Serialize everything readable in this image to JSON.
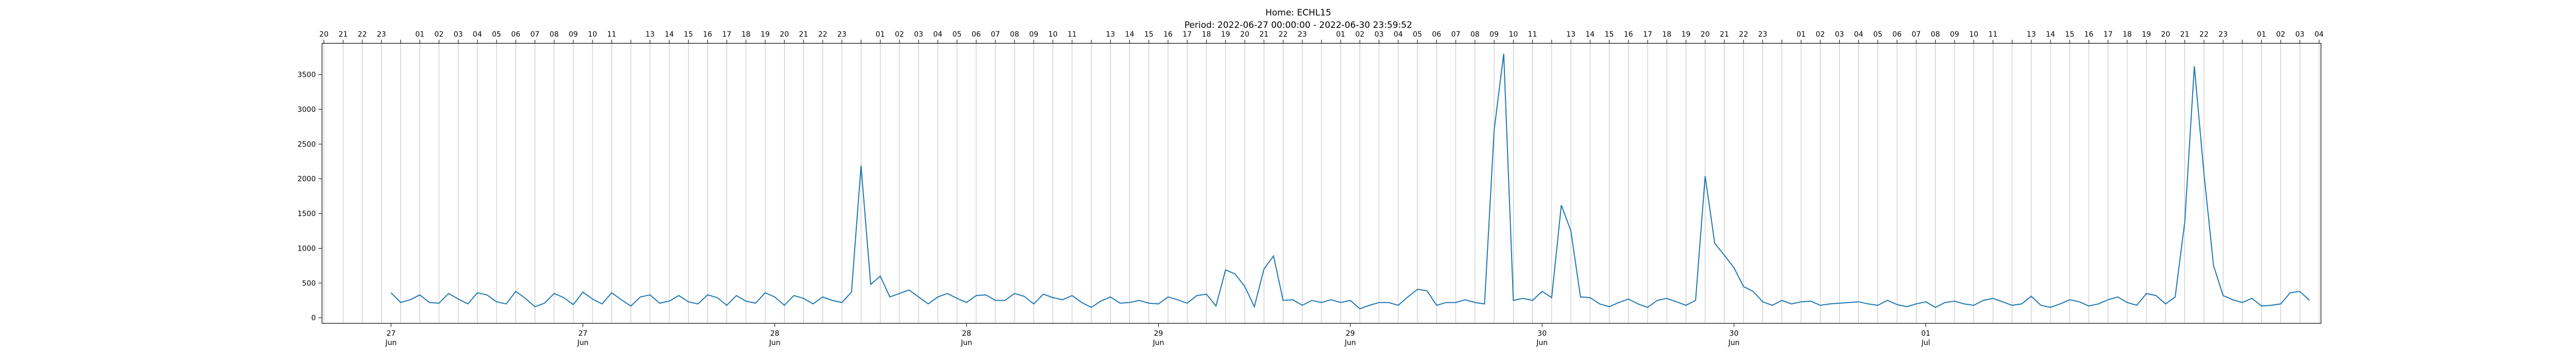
{
  "chart_data": {
    "type": "line",
    "title": "Home: ECHL15",
    "subtitle": "Period: 2022-06-27 00:00:00 - 2022-06-30 23:59:52",
    "xlabel": "",
    "ylabel": "",
    "ylim": [
      -80,
      3950
    ],
    "yticks": [
      0,
      500,
      1000,
      1500,
      2000,
      2500,
      3000,
      3500
    ],
    "xlim": [
      -3.6,
      100.6
    ],
    "grid": "vertical lines at each top hour tick",
    "series_color": "#1f77b4",
    "bottom_ticks": [
      {
        "x": 0,
        "day": "27",
        "month": "Jun"
      },
      {
        "x": 10,
        "day": "27",
        "month": "Jun"
      },
      {
        "x": 20,
        "day": "28",
        "month": "Jun"
      },
      {
        "x": 30,
        "day": "28",
        "month": "Jun"
      },
      {
        "x": 40,
        "day": "29",
        "month": "Jun"
      },
      {
        "x": 50,
        "day": "29",
        "month": "Jun"
      },
      {
        "x": 60,
        "day": "30",
        "month": "Jun"
      },
      {
        "x": 70,
        "day": "30",
        "month": "Jun"
      },
      {
        "x": 80,
        "day": "01",
        "month": "Jul"
      }
    ],
    "top_ticks": [
      {
        "x": -3.5,
        "label": "20"
      },
      {
        "x": -2.5,
        "label": "21"
      },
      {
        "x": -1.5,
        "label": "22"
      },
      {
        "x": -0.5,
        "label": "23"
      },
      {
        "x": 0.5,
        "label": ""
      },
      {
        "x": 1.5,
        "label": "01"
      },
      {
        "x": 2.5,
        "label": "02"
      },
      {
        "x": 3.5,
        "label": "03"
      },
      {
        "x": 4.5,
        "label": "04"
      },
      {
        "x": 5.5,
        "label": "05"
      },
      {
        "x": 6.5,
        "label": "06"
      },
      {
        "x": 7.5,
        "label": "07"
      },
      {
        "x": 8.5,
        "label": "08"
      },
      {
        "x": 9.5,
        "label": "09"
      },
      {
        "x": 10.5,
        "label": "10"
      },
      {
        "x": 11.5,
        "label": "11"
      },
      {
        "x": 12.5,
        "label": ""
      },
      {
        "x": 13.5,
        "label": "13"
      },
      {
        "x": 14.5,
        "label": "14"
      },
      {
        "x": 15.5,
        "label": "15"
      },
      {
        "x": 16.5,
        "label": "16"
      },
      {
        "x": 17.5,
        "label": "17"
      },
      {
        "x": 18.5,
        "label": "18"
      },
      {
        "x": 19.5,
        "label": "19"
      },
      {
        "x": 20.5,
        "label": "20"
      },
      {
        "x": 21.5,
        "label": "21"
      },
      {
        "x": 22.5,
        "label": "22"
      },
      {
        "x": 23.5,
        "label": "23"
      },
      {
        "x": 24.5,
        "label": ""
      },
      {
        "x": 25.5,
        "label": "01"
      },
      {
        "x": 26.5,
        "label": "02"
      },
      {
        "x": 27.5,
        "label": "03"
      },
      {
        "x": 28.5,
        "label": "04"
      },
      {
        "x": 29.5,
        "label": "05"
      },
      {
        "x": 30.5,
        "label": "06"
      },
      {
        "x": 31.5,
        "label": "07"
      },
      {
        "x": 32.5,
        "label": "08"
      },
      {
        "x": 33.5,
        "label": "09"
      },
      {
        "x": 34.5,
        "label": "10"
      },
      {
        "x": 35.5,
        "label": "11"
      },
      {
        "x": 36.5,
        "label": ""
      },
      {
        "x": 37.5,
        "label": "13"
      },
      {
        "x": 38.5,
        "label": "14"
      },
      {
        "x": 39.5,
        "label": "15"
      },
      {
        "x": 40.5,
        "label": "16"
      },
      {
        "x": 41.5,
        "label": "17"
      },
      {
        "x": 42.5,
        "label": "18"
      },
      {
        "x": 43.5,
        "label": "19"
      },
      {
        "x": 44.5,
        "label": "20"
      },
      {
        "x": 45.5,
        "label": "21"
      },
      {
        "x": 46.5,
        "label": "22"
      },
      {
        "x": 47.5,
        "label": "23"
      },
      {
        "x": 48.5,
        "label": ""
      },
      {
        "x": 49.5,
        "label": "01"
      },
      {
        "x": 50.5,
        "label": "02"
      },
      {
        "x": 51.5,
        "label": "03"
      },
      {
        "x": 52.5,
        "label": "04"
      },
      {
        "x": 53.5,
        "label": "05"
      },
      {
        "x": 54.5,
        "label": "06"
      },
      {
        "x": 55.5,
        "label": "07"
      },
      {
        "x": 56.5,
        "label": "08"
      },
      {
        "x": 57.5,
        "label": "09"
      },
      {
        "x": 58.5,
        "label": "10"
      },
      {
        "x": 59.5,
        "label": "11"
      },
      {
        "x": 60.5,
        "label": ""
      },
      {
        "x": 61.5,
        "label": "13"
      },
      {
        "x": 62.5,
        "label": "14"
      },
      {
        "x": 63.5,
        "label": "15"
      },
      {
        "x": 64.5,
        "label": "16"
      },
      {
        "x": 65.5,
        "label": "17"
      },
      {
        "x": 66.5,
        "label": "18"
      },
      {
        "x": 67.5,
        "label": "19"
      },
      {
        "x": 68.5,
        "label": "20"
      },
      {
        "x": 69.5,
        "label": "21"
      },
      {
        "x": 70.5,
        "label": "22"
      },
      {
        "x": 71.5,
        "label": "23"
      },
      {
        "x": 72.5,
        "label": ""
      },
      {
        "x": 73.5,
        "label": "01"
      },
      {
        "x": 74.5,
        "label": "02"
      },
      {
        "x": 75.5,
        "label": "03"
      },
      {
        "x": 76.5,
        "label": "04"
      },
      {
        "x": 77.5,
        "label": "05"
      },
      {
        "x": 78.5,
        "label": "06"
      },
      {
        "x": 79.5,
        "label": "07"
      },
      {
        "x": 80.5,
        "label": "08"
      },
      {
        "x": 81.5,
        "label": "09"
      },
      {
        "x": 82.5,
        "label": "10"
      },
      {
        "x": 83.5,
        "label": "11"
      },
      {
        "x": 84.5,
        "label": ""
      },
      {
        "x": 85.5,
        "label": "13"
      },
      {
        "x": 86.5,
        "label": "14"
      },
      {
        "x": 87.5,
        "label": "15"
      },
      {
        "x": 88.5,
        "label": "16"
      },
      {
        "x": 89.5,
        "label": "17"
      },
      {
        "x": 90.5,
        "label": "18"
      },
      {
        "x": 91.5,
        "label": "19"
      },
      {
        "x": 92.5,
        "label": "20"
      },
      {
        "x": 93.5,
        "label": "21"
      },
      {
        "x": 94.5,
        "label": "22"
      },
      {
        "x": 95.5,
        "label": "23"
      },
      {
        "x": 96.5,
        "label": ""
      },
      {
        "x": 97.5,
        "label": "01"
      },
      {
        "x": 98.5,
        "label": "02"
      },
      {
        "x": 99.5,
        "label": "03"
      },
      {
        "x": 100.5,
        "label": "04"
      }
    ],
    "series": [
      {
        "points": [
          [
            0.0,
            360
          ],
          [
            0.5,
            220
          ],
          [
            1.0,
            260
          ],
          [
            1.5,
            330
          ],
          [
            2.0,
            220
          ],
          [
            2.5,
            210
          ],
          [
            3.0,
            350
          ],
          [
            3.5,
            270
          ],
          [
            4.0,
            200
          ],
          [
            4.5,
            360
          ],
          [
            5.0,
            330
          ],
          [
            5.5,
            230
          ],
          [
            6.0,
            200
          ],
          [
            6.5,
            380
          ],
          [
            7.0,
            280
          ],
          [
            7.5,
            160
          ],
          [
            8.0,
            210
          ],
          [
            8.5,
            350
          ],
          [
            9.0,
            290
          ],
          [
            9.5,
            190
          ],
          [
            10.0,
            370
          ],
          [
            10.5,
            270
          ],
          [
            11.0,
            200
          ],
          [
            11.5,
            360
          ],
          [
            12.0,
            260
          ],
          [
            12.5,
            170
          ],
          [
            13.0,
            300
          ],
          [
            13.5,
            330
          ],
          [
            14.0,
            210
          ],
          [
            14.5,
            240
          ],
          [
            15.0,
            320
          ],
          [
            15.5,
            230
          ],
          [
            16.0,
            200
          ],
          [
            16.5,
            330
          ],
          [
            17.0,
            290
          ],
          [
            17.5,
            180
          ],
          [
            18.0,
            320
          ],
          [
            18.5,
            240
          ],
          [
            19.0,
            210
          ],
          [
            19.5,
            360
          ],
          [
            20.0,
            300
          ],
          [
            20.5,
            180
          ],
          [
            21.0,
            320
          ],
          [
            21.5,
            280
          ],
          [
            22.0,
            200
          ],
          [
            22.5,
            300
          ],
          [
            23.0,
            250
          ],
          [
            23.5,
            220
          ],
          [
            24.0,
            370
          ],
          [
            24.5,
            2190
          ],
          [
            25.0,
            480
          ],
          [
            25.5,
            600
          ],
          [
            26.0,
            300
          ],
          [
            26.5,
            350
          ],
          [
            27.0,
            400
          ],
          [
            27.5,
            300
          ],
          [
            28.0,
            200
          ],
          [
            28.5,
            300
          ],
          [
            29.0,
            350
          ],
          [
            29.5,
            280
          ],
          [
            30.0,
            220
          ],
          [
            30.5,
            320
          ],
          [
            31.0,
            330
          ],
          [
            31.5,
            250
          ],
          [
            32.0,
            250
          ],
          [
            32.5,
            350
          ],
          [
            33.0,
            310
          ],
          [
            33.5,
            200
          ],
          [
            34.0,
            340
          ],
          [
            34.5,
            290
          ],
          [
            35.0,
            260
          ],
          [
            35.5,
            320
          ],
          [
            36.0,
            220
          ],
          [
            36.5,
            150
          ],
          [
            37.0,
            240
          ],
          [
            37.5,
            300
          ],
          [
            38.0,
            210
          ],
          [
            38.5,
            220
          ],
          [
            39.0,
            250
          ],
          [
            39.5,
            210
          ],
          [
            40.0,
            200
          ],
          [
            40.5,
            300
          ],
          [
            41.0,
            260
          ],
          [
            41.5,
            210
          ],
          [
            42.0,
            320
          ],
          [
            42.5,
            340
          ],
          [
            43.0,
            170
          ],
          [
            43.5,
            690
          ],
          [
            44.0,
            630
          ],
          [
            44.5,
            450
          ],
          [
            45.0,
            160
          ],
          [
            45.5,
            700
          ],
          [
            46.0,
            890
          ],
          [
            46.5,
            250
          ],
          [
            47.0,
            260
          ],
          [
            47.5,
            180
          ],
          [
            48.0,
            250
          ],
          [
            48.5,
            220
          ],
          [
            49.0,
            260
          ],
          [
            49.5,
            220
          ],
          [
            50.0,
            250
          ],
          [
            50.5,
            130
          ],
          [
            51.0,
            180
          ],
          [
            51.5,
            220
          ],
          [
            52.0,
            220
          ],
          [
            52.5,
            180
          ],
          [
            53.0,
            300
          ],
          [
            53.5,
            410
          ],
          [
            54.0,
            390
          ],
          [
            54.5,
            180
          ],
          [
            55.0,
            220
          ],
          [
            55.5,
            220
          ],
          [
            56.0,
            260
          ],
          [
            56.5,
            220
          ],
          [
            57.0,
            200
          ],
          [
            57.5,
            2700
          ],
          [
            58.0,
            3800
          ],
          [
            58.5,
            250
          ],
          [
            59.0,
            280
          ],
          [
            59.5,
            250
          ],
          [
            60.0,
            380
          ],
          [
            60.5,
            290
          ],
          [
            61.0,
            1620
          ],
          [
            61.5,
            1250
          ],
          [
            62.0,
            300
          ],
          [
            62.5,
            290
          ],
          [
            63.0,
            200
          ],
          [
            63.5,
            160
          ],
          [
            64.0,
            220
          ],
          [
            64.5,
            270
          ],
          [
            65.0,
            200
          ],
          [
            65.5,
            150
          ],
          [
            66.0,
            250
          ],
          [
            66.5,
            280
          ],
          [
            67.0,
            230
          ],
          [
            67.5,
            180
          ],
          [
            68.0,
            250
          ],
          [
            68.5,
            2040
          ],
          [
            69.0,
            1070
          ],
          [
            69.5,
            900
          ],
          [
            70.0,
            720
          ],
          [
            70.5,
            450
          ],
          [
            71.0,
            380
          ],
          [
            71.5,
            230
          ],
          [
            72.0,
            180
          ],
          [
            72.5,
            250
          ],
          [
            73.0,
            200
          ],
          [
            73.5,
            230
          ],
          [
            74.0,
            240
          ],
          [
            74.5,
            180
          ],
          [
            75.0,
            200
          ],
          [
            75.5,
            210
          ],
          [
            76.0,
            220
          ],
          [
            76.5,
            230
          ],
          [
            77.0,
            200
          ],
          [
            77.5,
            180
          ],
          [
            78.0,
            250
          ],
          [
            78.5,
            190
          ],
          [
            79.0,
            160
          ],
          [
            79.5,
            200
          ],
          [
            80.0,
            230
          ],
          [
            80.5,
            150
          ],
          [
            81.0,
            220
          ],
          [
            81.5,
            240
          ],
          [
            82.0,
            200
          ],
          [
            82.5,
            180
          ],
          [
            83.0,
            250
          ],
          [
            83.5,
            280
          ],
          [
            84.0,
            230
          ],
          [
            84.5,
            180
          ],
          [
            85.0,
            200
          ],
          [
            85.5,
            310
          ],
          [
            86.0,
            180
          ],
          [
            86.5,
            150
          ],
          [
            87.0,
            200
          ],
          [
            87.5,
            260
          ],
          [
            88.0,
            230
          ],
          [
            88.5,
            170
          ],
          [
            89.0,
            200
          ],
          [
            89.5,
            260
          ],
          [
            90.0,
            300
          ],
          [
            90.5,
            220
          ],
          [
            91.0,
            180
          ],
          [
            91.5,
            350
          ],
          [
            92.0,
            320
          ],
          [
            92.5,
            200
          ],
          [
            93.0,
            300
          ],
          [
            93.5,
            1380
          ],
          [
            94.0,
            3620
          ],
          [
            94.5,
            2070
          ],
          [
            95.0,
            750
          ],
          [
            95.5,
            320
          ],
          [
            96.0,
            260
          ],
          [
            96.5,
            220
          ],
          [
            97.0,
            280
          ],
          [
            97.5,
            170
          ],
          [
            98.0,
            180
          ],
          [
            98.5,
            200
          ],
          [
            99.0,
            360
          ],
          [
            99.5,
            380
          ],
          [
            100.0,
            250
          ]
        ]
      }
    ]
  }
}
